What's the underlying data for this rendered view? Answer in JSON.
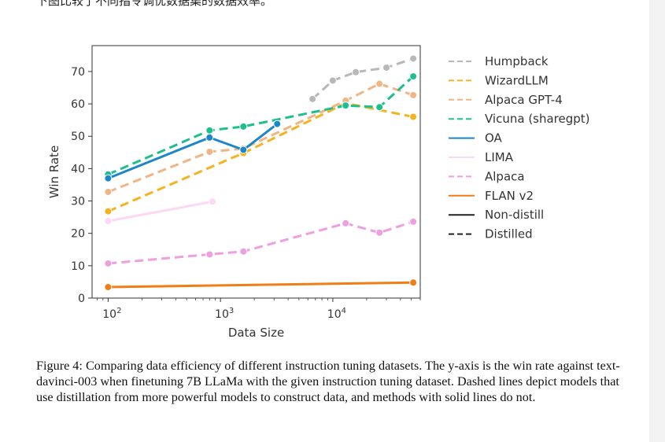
{
  "top_text": "下图比较了不同指令调优数据集的数据效率。",
  "caption": "Figure 4: Comparing data efficiency of different instruction tuning datasets. The y-axis is the win rate against text-davinci-003 when finetuning 7B LLaMa with the given instruction tuning dataset. Dashed lines depict models that use distillation from more powerful models to construct data, and methods with solid lines do not.",
  "chart_data": {
    "type": "line",
    "xlabel": "Data Size",
    "ylabel": "Win Rate",
    "xscale": "log",
    "xlim": [
      72,
      60000
    ],
    "ylim": [
      0,
      78
    ],
    "x_ticks": [
      {
        "value": 100,
        "base": "10",
        "exp": "2"
      },
      {
        "value": 1000,
        "base": "10",
        "exp": "3"
      },
      {
        "value": 10000,
        "base": "10",
        "exp": "4"
      }
    ],
    "y_ticks": [
      0,
      10,
      20,
      30,
      40,
      50,
      60,
      70
    ],
    "legend_position": "right",
    "series": [
      {
        "name": "Humpback",
        "color": "#b8b8b8",
        "dashed": true,
        "points": [
          [
            6600,
            61.5
          ],
          [
            10000,
            67.2
          ],
          [
            16000,
            69.8
          ],
          [
            30000,
            71.2
          ],
          [
            52000,
            74.0
          ]
        ]
      },
      {
        "name": "WizardLLM",
        "color": "#f5b41f",
        "dashed": true,
        "points": [
          [
            100,
            26.8
          ],
          [
            1600,
            44.8
          ],
          [
            13000,
            60.2
          ],
          [
            52000,
            56.0
          ]
        ]
      },
      {
        "name": "Alpaca GPT-4",
        "color": "#f0b584",
        "dashed": true,
        "points": [
          [
            100,
            32.8
          ],
          [
            800,
            45.2
          ],
          [
            1600,
            46.2
          ],
          [
            13000,
            61.0
          ],
          [
            26000,
            66.2
          ],
          [
            52000,
            62.7
          ]
        ]
      },
      {
        "name": "Vicuna (sharegpt)",
        "color": "#1dbf8e",
        "dashed": true,
        "points": [
          [
            100,
            38.2
          ],
          [
            800,
            51.8
          ],
          [
            1600,
            53.0
          ],
          [
            13000,
            59.5
          ],
          [
            26000,
            59.0
          ],
          [
            52000,
            68.5
          ]
        ]
      },
      {
        "name": "OA",
        "color": "#1b87c9",
        "dashed": false,
        "points": [
          [
            100,
            37.0
          ],
          [
            800,
            49.6
          ],
          [
            1600,
            45.8
          ],
          [
            3200,
            53.8
          ]
        ]
      },
      {
        "name": "LIMA",
        "color": "#fdd7f3",
        "dashed": false,
        "points": [
          [
            100,
            23.8
          ],
          [
            850,
            29.8
          ]
        ]
      },
      {
        "name": "Alpaca",
        "color": "#ee9fe0",
        "dashed": true,
        "points": [
          [
            100,
            10.7
          ],
          [
            800,
            13.5
          ],
          [
            1600,
            14.4
          ],
          [
            13000,
            23.1
          ],
          [
            26000,
            20.2
          ],
          [
            52000,
            23.6
          ]
        ]
      },
      {
        "name": "FLAN v2",
        "color": "#f07d16",
        "dashed": false,
        "points": [
          [
            100,
            3.4
          ],
          [
            52000,
            4.8
          ]
        ]
      }
    ],
    "style_legend": [
      {
        "name": "Non-distill",
        "color": "#222222",
        "dashed": false
      },
      {
        "name": "Distilled",
        "color": "#222222",
        "dashed": true
      }
    ]
  }
}
